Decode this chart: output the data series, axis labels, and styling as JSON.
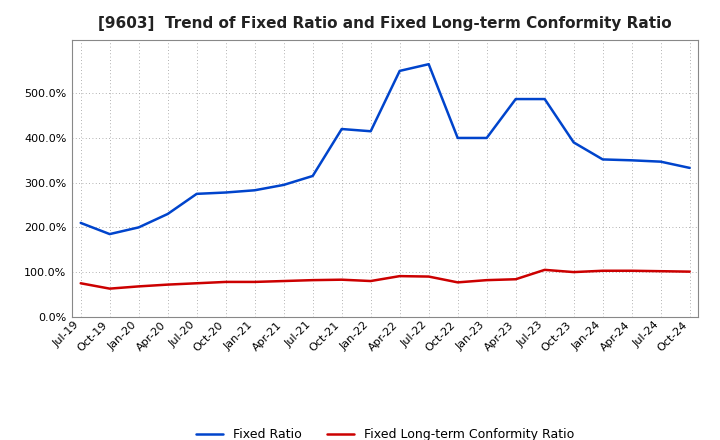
{
  "title": "[9603]  Trend of Fixed Ratio and Fixed Long-term Conformity Ratio",
  "x_labels": [
    "Jul-19",
    "Oct-19",
    "Jan-20",
    "Apr-20",
    "Jul-20",
    "Oct-20",
    "Jan-21",
    "Apr-21",
    "Jul-21",
    "Oct-21",
    "Jan-22",
    "Apr-22",
    "Jul-22",
    "Oct-22",
    "Jan-23",
    "Apr-23",
    "Jul-23",
    "Oct-23",
    "Jan-24",
    "Apr-24",
    "Jul-24",
    "Oct-24"
  ],
  "fixed_ratio": [
    210.0,
    185.0,
    200.0,
    230.0,
    275.0,
    278.0,
    283.0,
    295.0,
    315.0,
    420.0,
    415.0,
    550.0,
    565.0,
    400.0,
    400.0,
    487.0,
    487.0,
    390.0,
    352.0,
    350.0,
    347.0,
    333.0
  ],
  "fixed_lt_ratio": [
    75.0,
    63.0,
    68.0,
    72.0,
    75.0,
    78.0,
    78.0,
    80.0,
    82.0,
    83.0,
    80.0,
    91.0,
    90.0,
    77.0,
    82.0,
    84.0,
    105.0,
    100.0,
    103.0,
    103.0,
    102.0,
    101.0
  ],
  "fixed_ratio_color": "#0044CC",
  "fixed_lt_ratio_color": "#CC0000",
  "ylim": [
    0.0,
    620.0
  ],
  "yticks": [
    0.0,
    100.0,
    200.0,
    300.0,
    400.0,
    500.0
  ],
  "background_color": "#FFFFFF",
  "grid_color": "#999999",
  "legend_fixed_ratio": "Fixed Ratio",
  "legend_fixed_lt_ratio": "Fixed Long-term Conformity Ratio",
  "title_fontsize": 11,
  "tick_fontsize": 8,
  "legend_fontsize": 9
}
